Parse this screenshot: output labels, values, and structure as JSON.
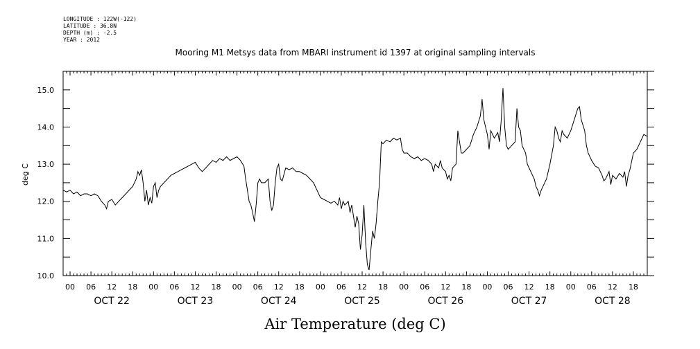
{
  "metadata": {
    "longitude": "LONGITUDE : 122W(-122)",
    "latitude": "LATITUDE : 36.8N",
    "depth": "DEPTH (m) : -2.5",
    "year": "YEAR : 2012"
  },
  "chart_data": {
    "type": "line",
    "title": "Mooring M1 Metsys data from MBARI instrument id 1397 at original sampling intervals",
    "xlabel": "Air Temperature (deg C)",
    "ylabel": "deg C",
    "ylim": [
      10.0,
      15.5
    ],
    "xlim_hours": [
      -2,
      166
    ],
    "y_ticks": [
      "10.0",
      "11.0",
      "12.0",
      "13.0",
      "14.0",
      "15.0"
    ],
    "hour_tick_labels": [
      "00",
      "06",
      "12",
      "18"
    ],
    "day_labels": [
      "OCT 22",
      "OCT 23",
      "OCT 24",
      "OCT 25",
      "OCT 26",
      "OCT 27",
      "OCT 28"
    ],
    "grid": false,
    "series": [
      {
        "color": "#000000",
        "points": [
          [
            -2,
            12.3
          ],
          [
            -1,
            12.25
          ],
          [
            0,
            12.3
          ],
          [
            1,
            12.2
          ],
          [
            2,
            12.25
          ],
          [
            3,
            12.15
          ],
          [
            4,
            12.2
          ],
          [
            5,
            12.2
          ],
          [
            6,
            12.15
          ],
          [
            7,
            12.2
          ],
          [
            8,
            12.15
          ],
          [
            9,
            12.0
          ],
          [
            10,
            11.9
          ],
          [
            10.5,
            11.8
          ],
          [
            11,
            12.0
          ],
          [
            12,
            12.05
          ],
          [
            13,
            11.9
          ],
          [
            14,
            12.0
          ],
          [
            15,
            12.1
          ],
          [
            16,
            12.2
          ],
          [
            17,
            12.3
          ],
          [
            18,
            12.4
          ],
          [
            19,
            12.6
          ],
          [
            19.5,
            12.8
          ],
          [
            20,
            12.7
          ],
          [
            20.5,
            12.85
          ],
          [
            21,
            12.5
          ],
          [
            21.5,
            12.0
          ],
          [
            22,
            12.3
          ],
          [
            22.5,
            11.9
          ],
          [
            23,
            12.1
          ],
          [
            23.5,
            11.95
          ],
          [
            24,
            12.4
          ],
          [
            24.5,
            12.5
          ],
          [
            25,
            12.1
          ],
          [
            25.5,
            12.3
          ],
          [
            26,
            12.4
          ],
          [
            27,
            12.5
          ],
          [
            28,
            12.6
          ],
          [
            29,
            12.7
          ],
          [
            30,
            12.75
          ],
          [
            31,
            12.8
          ],
          [
            32,
            12.85
          ],
          [
            33,
            12.9
          ],
          [
            34,
            12.95
          ],
          [
            35,
            13.0
          ],
          [
            36,
            13.05
          ],
          [
            37,
            12.9
          ],
          [
            38,
            12.8
          ],
          [
            39,
            12.9
          ],
          [
            40,
            13.0
          ],
          [
            41,
            13.1
          ],
          [
            42,
            13.05
          ],
          [
            43,
            13.15
          ],
          [
            44,
            13.1
          ],
          [
            45,
            13.2
          ],
          [
            46,
            13.1
          ],
          [
            47,
            13.15
          ],
          [
            48,
            13.2
          ],
          [
            49,
            13.1
          ],
          [
            50,
            12.95
          ],
          [
            50.5,
            12.6
          ],
          [
            51,
            12.3
          ],
          [
            51.5,
            12.0
          ],
          [
            52,
            11.9
          ],
          [
            52.5,
            11.7
          ],
          [
            53,
            11.45
          ],
          [
            53.5,
            11.9
          ],
          [
            54,
            12.5
          ],
          [
            54.5,
            12.6
          ],
          [
            55,
            12.5
          ],
          [
            56,
            12.5
          ],
          [
            57,
            12.6
          ],
          [
            57.5,
            12.0
          ],
          [
            58,
            11.75
          ],
          [
            58.5,
            11.9
          ],
          [
            59,
            12.5
          ],
          [
            59.5,
            12.9
          ],
          [
            60,
            13.0
          ],
          [
            60.5,
            12.6
          ],
          [
            61,
            12.55
          ],
          [
            62,
            12.9
          ],
          [
            63,
            12.85
          ],
          [
            64,
            12.9
          ],
          [
            65,
            12.8
          ],
          [
            66,
            12.8
          ],
          [
            67,
            12.75
          ],
          [
            68,
            12.7
          ],
          [
            69,
            12.6
          ],
          [
            70,
            12.5
          ],
          [
            71,
            12.3
          ],
          [
            72,
            12.1
          ],
          [
            73,
            12.05
          ],
          [
            74,
            12.0
          ],
          [
            75,
            11.95
          ],
          [
            76,
            12.0
          ],
          [
            77,
            11.9
          ],
          [
            77.5,
            12.1
          ],
          [
            78,
            11.8
          ],
          [
            78.5,
            12.0
          ],
          [
            79,
            11.9
          ],
          [
            80,
            12.0
          ],
          [
            80.5,
            11.7
          ],
          [
            81,
            11.9
          ],
          [
            81.5,
            11.6
          ],
          [
            82,
            11.3
          ],
          [
            82.5,
            11.6
          ],
          [
            83,
            11.4
          ],
          [
            83.5,
            10.7
          ],
          [
            84,
            11.1
          ],
          [
            84.5,
            11.9
          ],
          [
            85,
            10.9
          ],
          [
            85.5,
            10.3
          ],
          [
            86,
            10.15
          ],
          [
            86.5,
            10.7
          ],
          [
            87,
            11.2
          ],
          [
            87.5,
            11.0
          ],
          [
            88,
            11.4
          ],
          [
            88.5,
            12.0
          ],
          [
            89,
            12.5
          ],
          [
            89.5,
            13.6
          ],
          [
            90,
            13.55
          ],
          [
            91,
            13.65
          ],
          [
            92,
            13.6
          ],
          [
            93,
            13.7
          ],
          [
            94,
            13.65
          ],
          [
            95,
            13.7
          ],
          [
            95.5,
            13.4
          ],
          [
            96,
            13.3
          ],
          [
            97,
            13.3
          ],
          [
            98,
            13.2
          ],
          [
            99,
            13.15
          ],
          [
            100,
            13.2
          ],
          [
            101,
            13.1
          ],
          [
            102,
            13.15
          ],
          [
            103,
            13.1
          ],
          [
            104,
            13.0
          ],
          [
            104.5,
            12.8
          ],
          [
            105,
            13.0
          ],
          [
            106,
            12.9
          ],
          [
            106.5,
            13.1
          ],
          [
            107,
            12.9
          ],
          [
            108,
            12.8
          ],
          [
            108.5,
            12.6
          ],
          [
            109,
            12.7
          ],
          [
            109.5,
            12.55
          ],
          [
            110,
            12.9
          ],
          [
            111,
            13.0
          ],
          [
            111.5,
            13.9
          ],
          [
            112,
            13.6
          ],
          [
            112.5,
            13.3
          ],
          [
            113,
            13.3
          ],
          [
            114,
            13.4
          ],
          [
            115,
            13.5
          ],
          [
            116,
            13.8
          ],
          [
            117,
            14.0
          ],
          [
            118,
            14.3
          ],
          [
            118.5,
            14.75
          ],
          [
            119,
            14.2
          ],
          [
            119.5,
            14.0
          ],
          [
            120,
            13.8
          ],
          [
            120.5,
            13.4
          ],
          [
            121,
            13.9
          ],
          [
            121.5,
            13.8
          ],
          [
            122,
            13.7
          ],
          [
            123,
            13.85
          ],
          [
            123.5,
            13.6
          ],
          [
            124,
            14.2
          ],
          [
            124.5,
            15.05
          ],
          [
            125,
            14.0
          ],
          [
            125.5,
            13.5
          ],
          [
            126,
            13.4
          ],
          [
            127,
            13.5
          ],
          [
            128,
            13.6
          ],
          [
            128.5,
            14.5
          ],
          [
            129,
            14.0
          ],
          [
            129.5,
            13.9
          ],
          [
            130,
            13.5
          ],
          [
            131,
            13.3
          ],
          [
            131.5,
            13.0
          ],
          [
            132,
            12.9
          ],
          [
            133,
            12.7
          ],
          [
            133.5,
            12.6
          ],
          [
            134,
            12.4
          ],
          [
            134.5,
            12.3
          ],
          [
            135,
            12.15
          ],
          [
            135.5,
            12.3
          ],
          [
            136,
            12.4
          ],
          [
            136.5,
            12.5
          ],
          [
            137,
            12.6
          ],
          [
            138,
            13.0
          ],
          [
            139,
            13.5
          ],
          [
            139.5,
            14.0
          ],
          [
            140,
            13.9
          ],
          [
            140.5,
            13.7
          ],
          [
            141,
            13.6
          ],
          [
            141.5,
            13.9
          ],
          [
            142,
            13.8
          ],
          [
            143,
            13.7
          ],
          [
            144,
            13.9
          ],
          [
            145,
            14.2
          ],
          [
            146,
            14.5
          ],
          [
            146.5,
            14.55
          ],
          [
            147,
            14.2
          ],
          [
            148,
            13.9
          ],
          [
            148.5,
            13.5
          ],
          [
            149,
            13.3
          ],
          [
            150,
            13.1
          ],
          [
            151,
            12.95
          ],
          [
            152,
            12.9
          ],
          [
            153,
            12.7
          ],
          [
            153.5,
            12.55
          ],
          [
            154,
            12.6
          ],
          [
            155,
            12.8
          ],
          [
            155.5,
            12.45
          ],
          [
            156,
            12.7
          ],
          [
            157,
            12.6
          ],
          [
            158,
            12.75
          ],
          [
            159,
            12.65
          ],
          [
            159.5,
            12.8
          ],
          [
            160,
            12.4
          ],
          [
            160.5,
            12.7
          ],
          [
            161,
            12.85
          ],
          [
            162,
            13.3
          ],
          [
            163,
            13.4
          ],
          [
            164,
            13.6
          ],
          [
            165,
            13.8
          ],
          [
            166,
            13.75
          ]
        ]
      }
    ]
  }
}
